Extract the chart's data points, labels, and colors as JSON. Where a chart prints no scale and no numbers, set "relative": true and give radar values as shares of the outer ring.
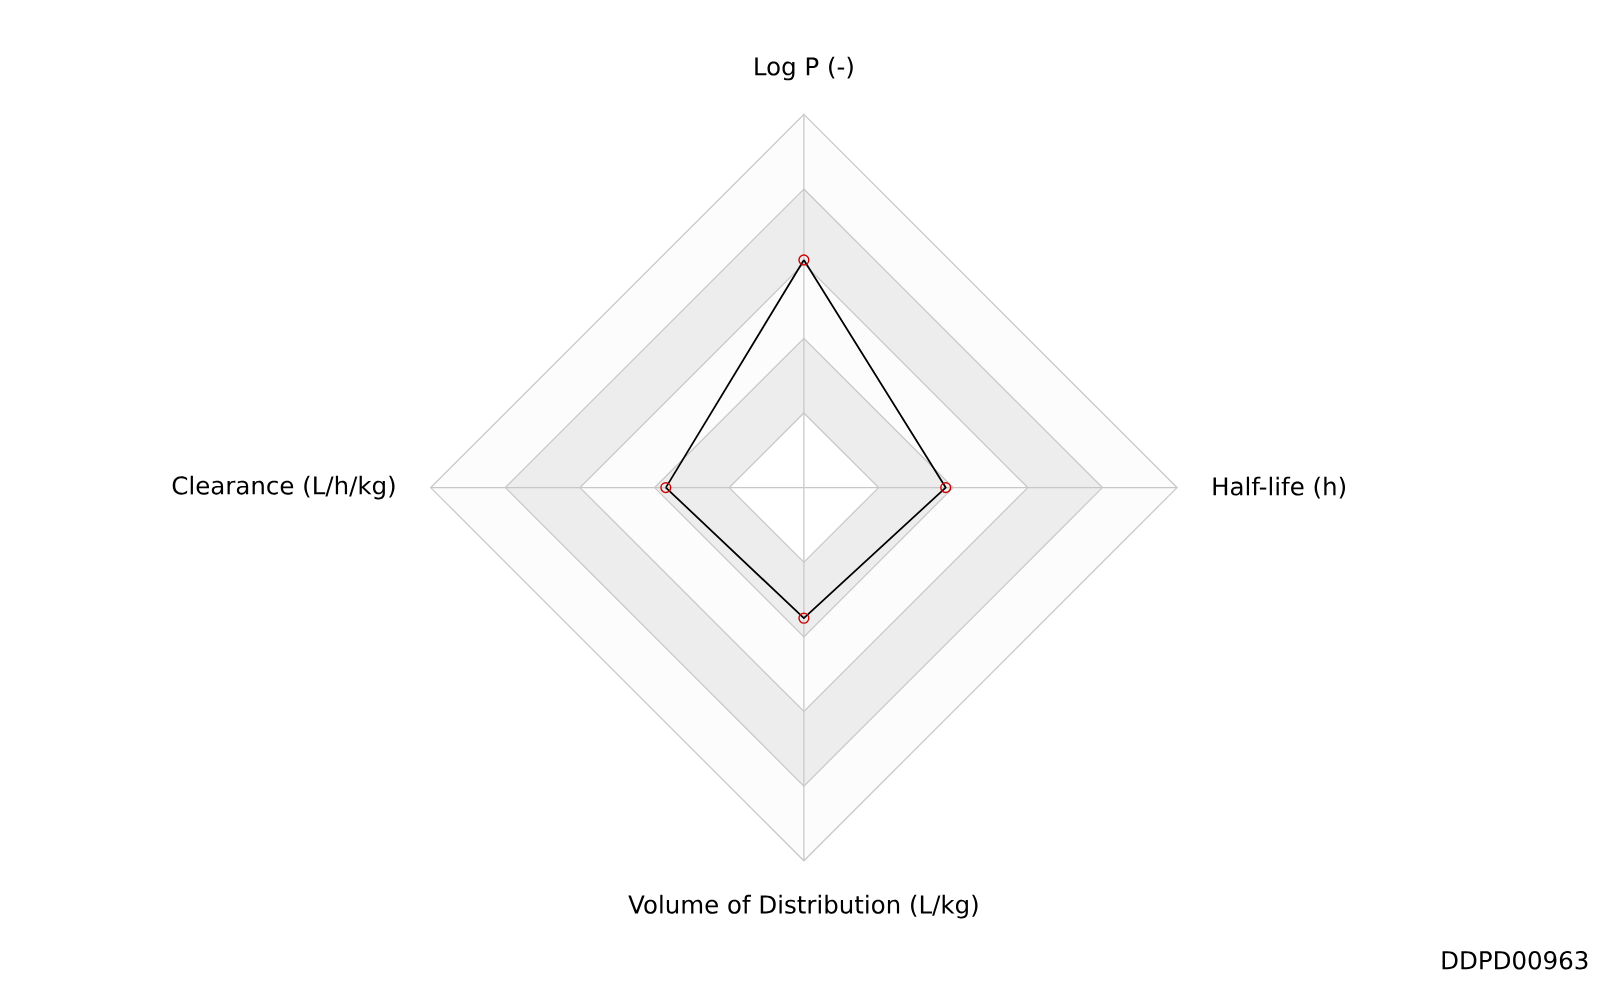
{
  "chart_data": {
    "type": "radar",
    "relative": true,
    "categories": [
      "Log P (-)",
      "Half-life (h)",
      "Volume of Distribution (L/kg)",
      "Clearance (L/h/kg)"
    ],
    "series": [
      {
        "color": "#000000",
        "values": [
          0.61,
          0.38,
          0.35,
          0.37
        ]
      }
    ],
    "marker": "circle",
    "annotations": [
      "DDPD00963"
    ]
  }
}
